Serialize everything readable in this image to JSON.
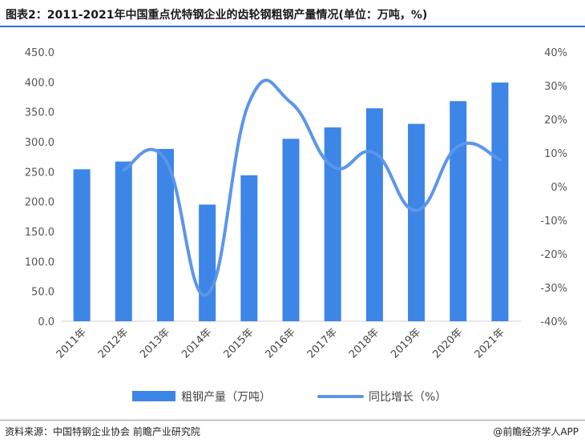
{
  "header": {
    "title": "图表2：2011-2021年中国重点优特钢企业的齿轮钢粗钢产量情况(单位：万吨，%)"
  },
  "footer": {
    "source": "资料来源：中国特钢企业协会 前瞻产业研究院",
    "brand": "@前瞻经济学人APP"
  },
  "colors": {
    "bar": "#3d85e6",
    "line": "#5b96ea",
    "axis": "#cfcfcf",
    "accent": "#2b6fd1"
  },
  "chart_data": {
    "type": "bar",
    "categories": [
      "2011年",
      "2012年",
      "2013年",
      "2014年",
      "2015年",
      "2016年",
      "2017年",
      "2018年",
      "2019年",
      "2020年",
      "2021年"
    ],
    "series": [
      {
        "name": "粗钢产量（万吨）",
        "type": "bar",
        "axis": "left",
        "values": [
          254,
          267,
          288,
          195,
          244,
          305,
          324,
          356,
          330,
          368,
          399
        ]
      },
      {
        "name": "同比增长（%）",
        "type": "line",
        "axis": "right",
        "values": [
          null,
          5,
          8,
          -32,
          25,
          25,
          6,
          10,
          -7,
          12,
          8
        ]
      }
    ],
    "left_axis": {
      "min": 0,
      "max": 450,
      "step": 50,
      "tick_labels": [
        "0.0",
        "50.0",
        "100.0",
        "150.0",
        "200.0",
        "250.0",
        "300.0",
        "350.0",
        "400.0",
        "450.0"
      ]
    },
    "right_axis": {
      "min": -40,
      "max": 40,
      "step": 10,
      "tick_labels": [
        "-40%",
        "-30%",
        "-20%",
        "-10%",
        "0%",
        "10%",
        "20%",
        "30%",
        "40%"
      ]
    },
    "legend": {
      "position": "bottom"
    },
    "grid": false
  }
}
